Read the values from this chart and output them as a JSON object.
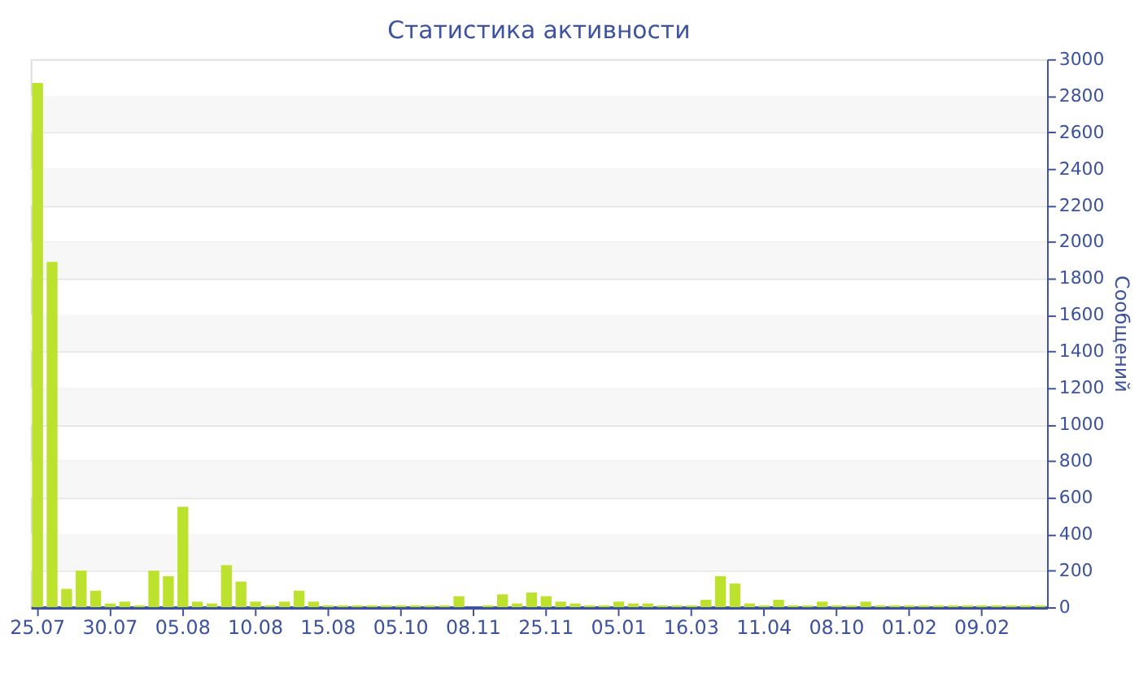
{
  "chart_data": {
    "type": "bar",
    "title": "Статистика активности",
    "ylabel": "Сообщений",
    "categories": [
      "25.07",
      null,
      null,
      null,
      null,
      "30.07",
      null,
      null,
      null,
      null,
      "05.08",
      null,
      null,
      null,
      null,
      "10.08",
      null,
      null,
      null,
      null,
      "15.08",
      null,
      null,
      null,
      null,
      "05.10",
      null,
      null,
      null,
      null,
      "08.11",
      null,
      null,
      null,
      null,
      "25.11",
      null,
      null,
      null,
      null,
      "05.01",
      null,
      null,
      null,
      null,
      "16.03",
      null,
      null,
      null,
      null,
      "11.04",
      null,
      null,
      null,
      null,
      "08.10",
      null,
      null,
      null,
      null,
      "01.02",
      null,
      null,
      null,
      null,
      "09.02",
      null,
      null,
      null,
      null
    ],
    "values": [
      2870,
      1890,
      100,
      200,
      90,
      20,
      30,
      10,
      200,
      170,
      550,
      30,
      20,
      230,
      140,
      30,
      10,
      30,
      90,
      30,
      10,
      10,
      10,
      10,
      10,
      10,
      10,
      10,
      10,
      60,
      0,
      10,
      70,
      20,
      80,
      60,
      30,
      20,
      10,
      10,
      30,
      20,
      20,
      10,
      10,
      10,
      40,
      170,
      130,
      20,
      10,
      40,
      10,
      10,
      30,
      10,
      10,
      30,
      10,
      10,
      10,
      10,
      10,
      10,
      10,
      10,
      10,
      10,
      10,
      10
    ],
    "color": "#bde22e",
    "ylim": [
      0,
      3000
    ],
    "yticks": [
      0,
      200,
      400,
      600,
      800,
      1000,
      1200,
      1400,
      1600,
      1800,
      2000,
      2200,
      2400,
      2600,
      2800,
      3000
    ],
    "grid": "y"
  }
}
